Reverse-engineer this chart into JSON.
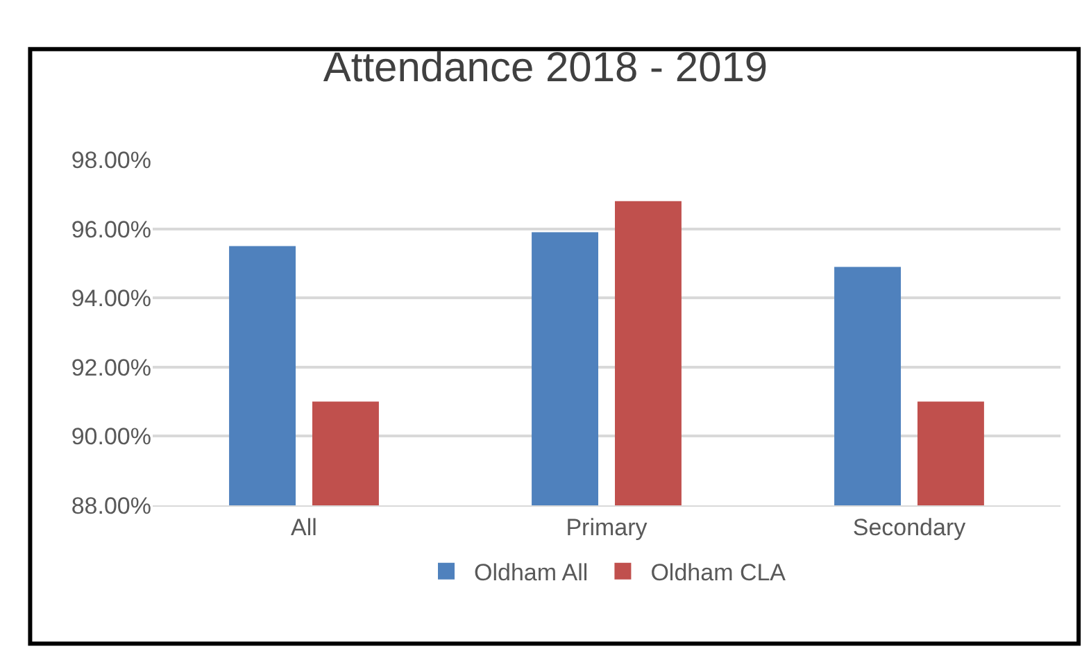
{
  "chart_data": {
    "type": "bar",
    "title": "Attendance 2018 - 2019",
    "categories": [
      "All",
      "Primary",
      "Secondary"
    ],
    "series": [
      {
        "name": "Oldham All",
        "color": "#4f81bd",
        "values": [
          95.5,
          95.9,
          94.9
        ]
      },
      {
        "name": "Oldham CLA",
        "color": "#c0504d",
        "values": [
          91.0,
          96.8,
          91.0
        ]
      }
    ],
    "ylim": [
      88,
      98
    ],
    "yticks": [
      {
        "value": 88,
        "label": "88.00%"
      },
      {
        "value": 90,
        "label": "90.00%"
      },
      {
        "value": 92,
        "label": "92.00%"
      },
      {
        "value": 94,
        "label": "94.00%"
      },
      {
        "value": 96,
        "label": "96.00%"
      },
      {
        "value": 98,
        "label": "98.00%"
      }
    ],
    "grid": "y",
    "legend": "bottom"
  }
}
